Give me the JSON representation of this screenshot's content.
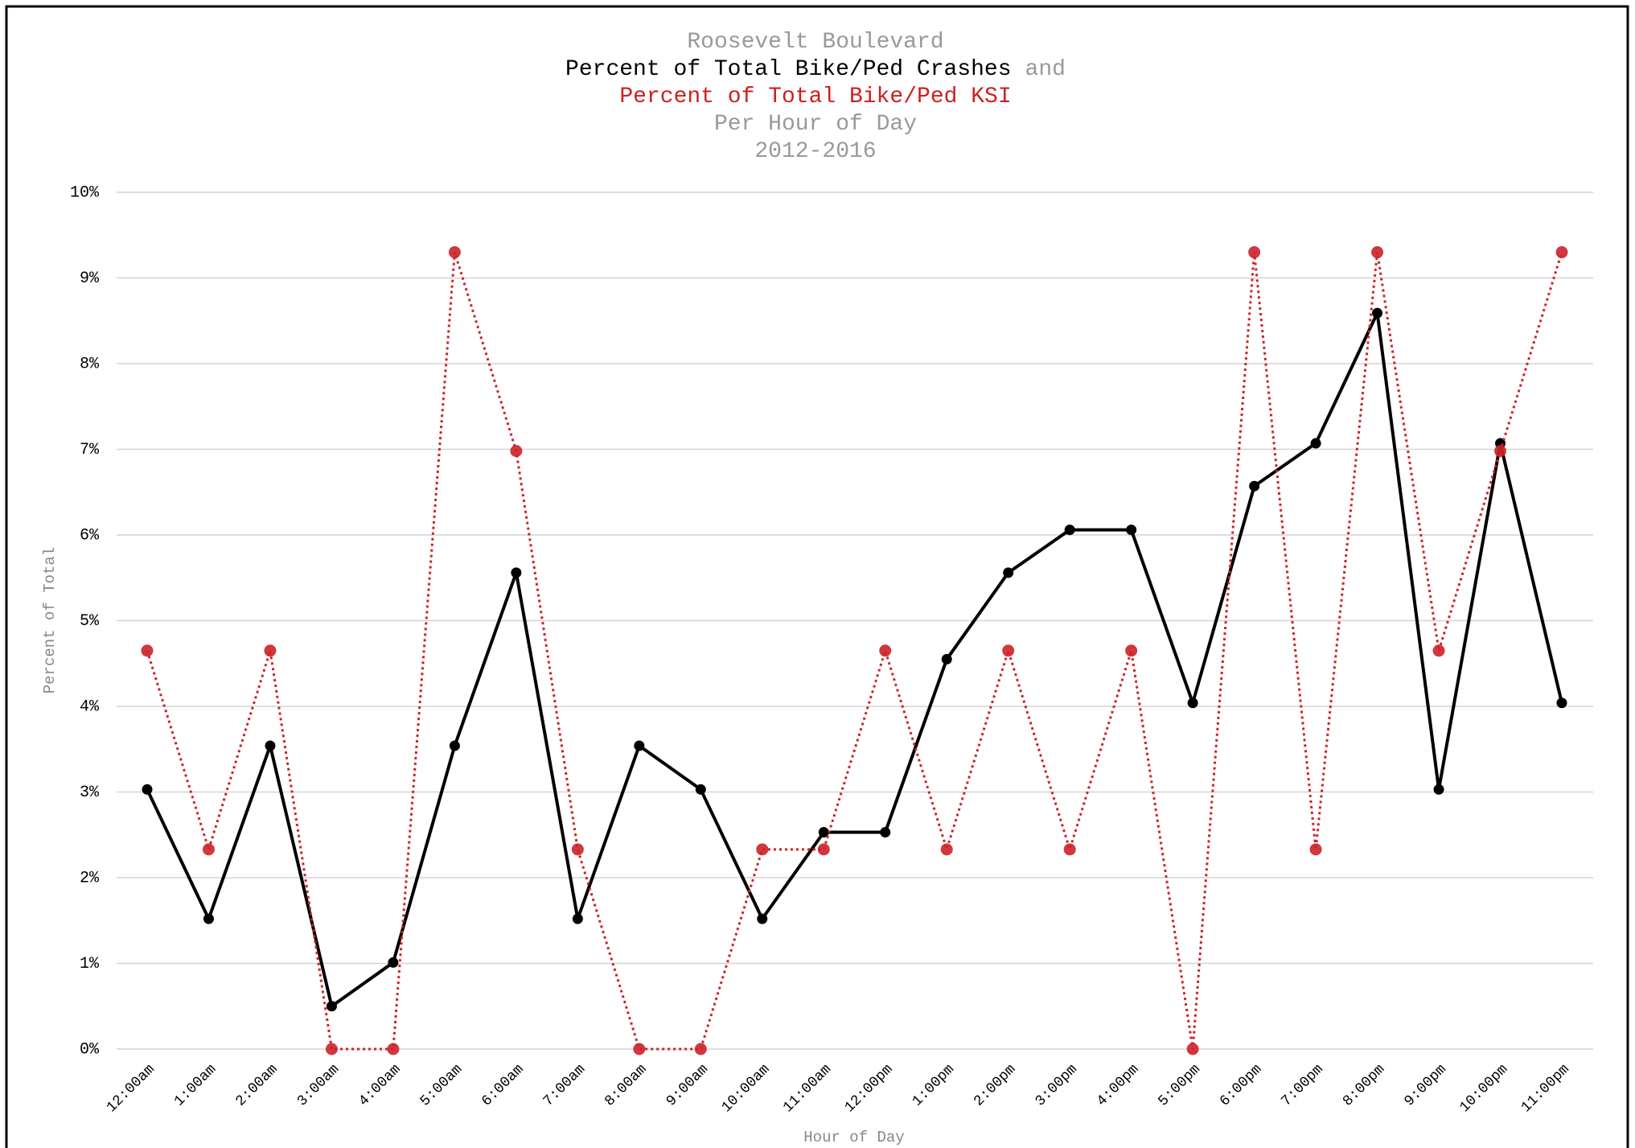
{
  "chart_data": {
    "type": "line",
    "title_lines": [
      [
        {
          "text": "Roosevelt Boulevard",
          "color": "#999999"
        }
      ],
      [
        {
          "text": "Percent of Total Bike/Ped Crashes",
          "color": "#000000"
        },
        {
          "text": "and",
          "color": "#999999"
        }
      ],
      [
        {
          "text": "Percent of Total Bike/Ped KSI",
          "color": "#cc1f1f"
        }
      ],
      [
        {
          "text": "Per Hour of Day",
          "color": "#999999"
        }
      ],
      [
        {
          "text": "2012-2016",
          "color": "#999999"
        }
      ]
    ],
    "x_label": "Hour of Day",
    "y_label": "Percent of Total",
    "categories": [
      "12:00am",
      "1:00am",
      "2:00am",
      "3:00am",
      "4:00am",
      "5:00am",
      "6:00am",
      "7:00am",
      "8:00am",
      "9:00am",
      "10:00am",
      "11:00am",
      "12:00pm",
      "1:00pm",
      "2:00pm",
      "3:00pm",
      "4:00pm",
      "5:00pm",
      "6:00pm",
      "7:00pm",
      "8:00pm",
      "9:00pm",
      "10:00pm",
      "11:00pm"
    ],
    "series": [
      {
        "name": "Percent of Total Bike/Ped Crashes",
        "color": "#000000",
        "style": "solid",
        "values": [
          3.03,
          1.52,
          3.54,
          0.5,
          1.01,
          3.54,
          5.56,
          1.52,
          3.54,
          3.03,
          1.52,
          2.53,
          2.53,
          4.55,
          5.56,
          6.06,
          6.06,
          4.04,
          6.57,
          7.07,
          8.59,
          3.03,
          7.07,
          4.04
        ]
      },
      {
        "name": "Percent of Total Bike/Ped KSI",
        "color": "#cc2229",
        "style": "dotted",
        "values": [
          4.65,
          2.33,
          4.65,
          0,
          0,
          9.3,
          6.98,
          2.33,
          0,
          0,
          2.33,
          2.33,
          4.65,
          2.33,
          4.65,
          2.33,
          4.65,
          0,
          9.3,
          2.33,
          9.3,
          4.65,
          6.98,
          9.3
        ]
      }
    ],
    "ylim": [
      0,
      10
    ],
    "yticks": [
      {
        "value": 0,
        "label": "0%"
      },
      {
        "value": 1,
        "label": "1%"
      },
      {
        "value": 2,
        "label": "2%"
      },
      {
        "value": 3,
        "label": "3%"
      },
      {
        "value": 4,
        "label": "4%"
      },
      {
        "value": 5,
        "label": "5%"
      },
      {
        "value": 6,
        "label": "6%"
      },
      {
        "value": 7,
        "label": "7%"
      },
      {
        "value": 8,
        "label": "8%"
      },
      {
        "value": 9,
        "label": "9%"
      },
      {
        "value": 10,
        "label": "10%"
      }
    ],
    "grid": true
  }
}
